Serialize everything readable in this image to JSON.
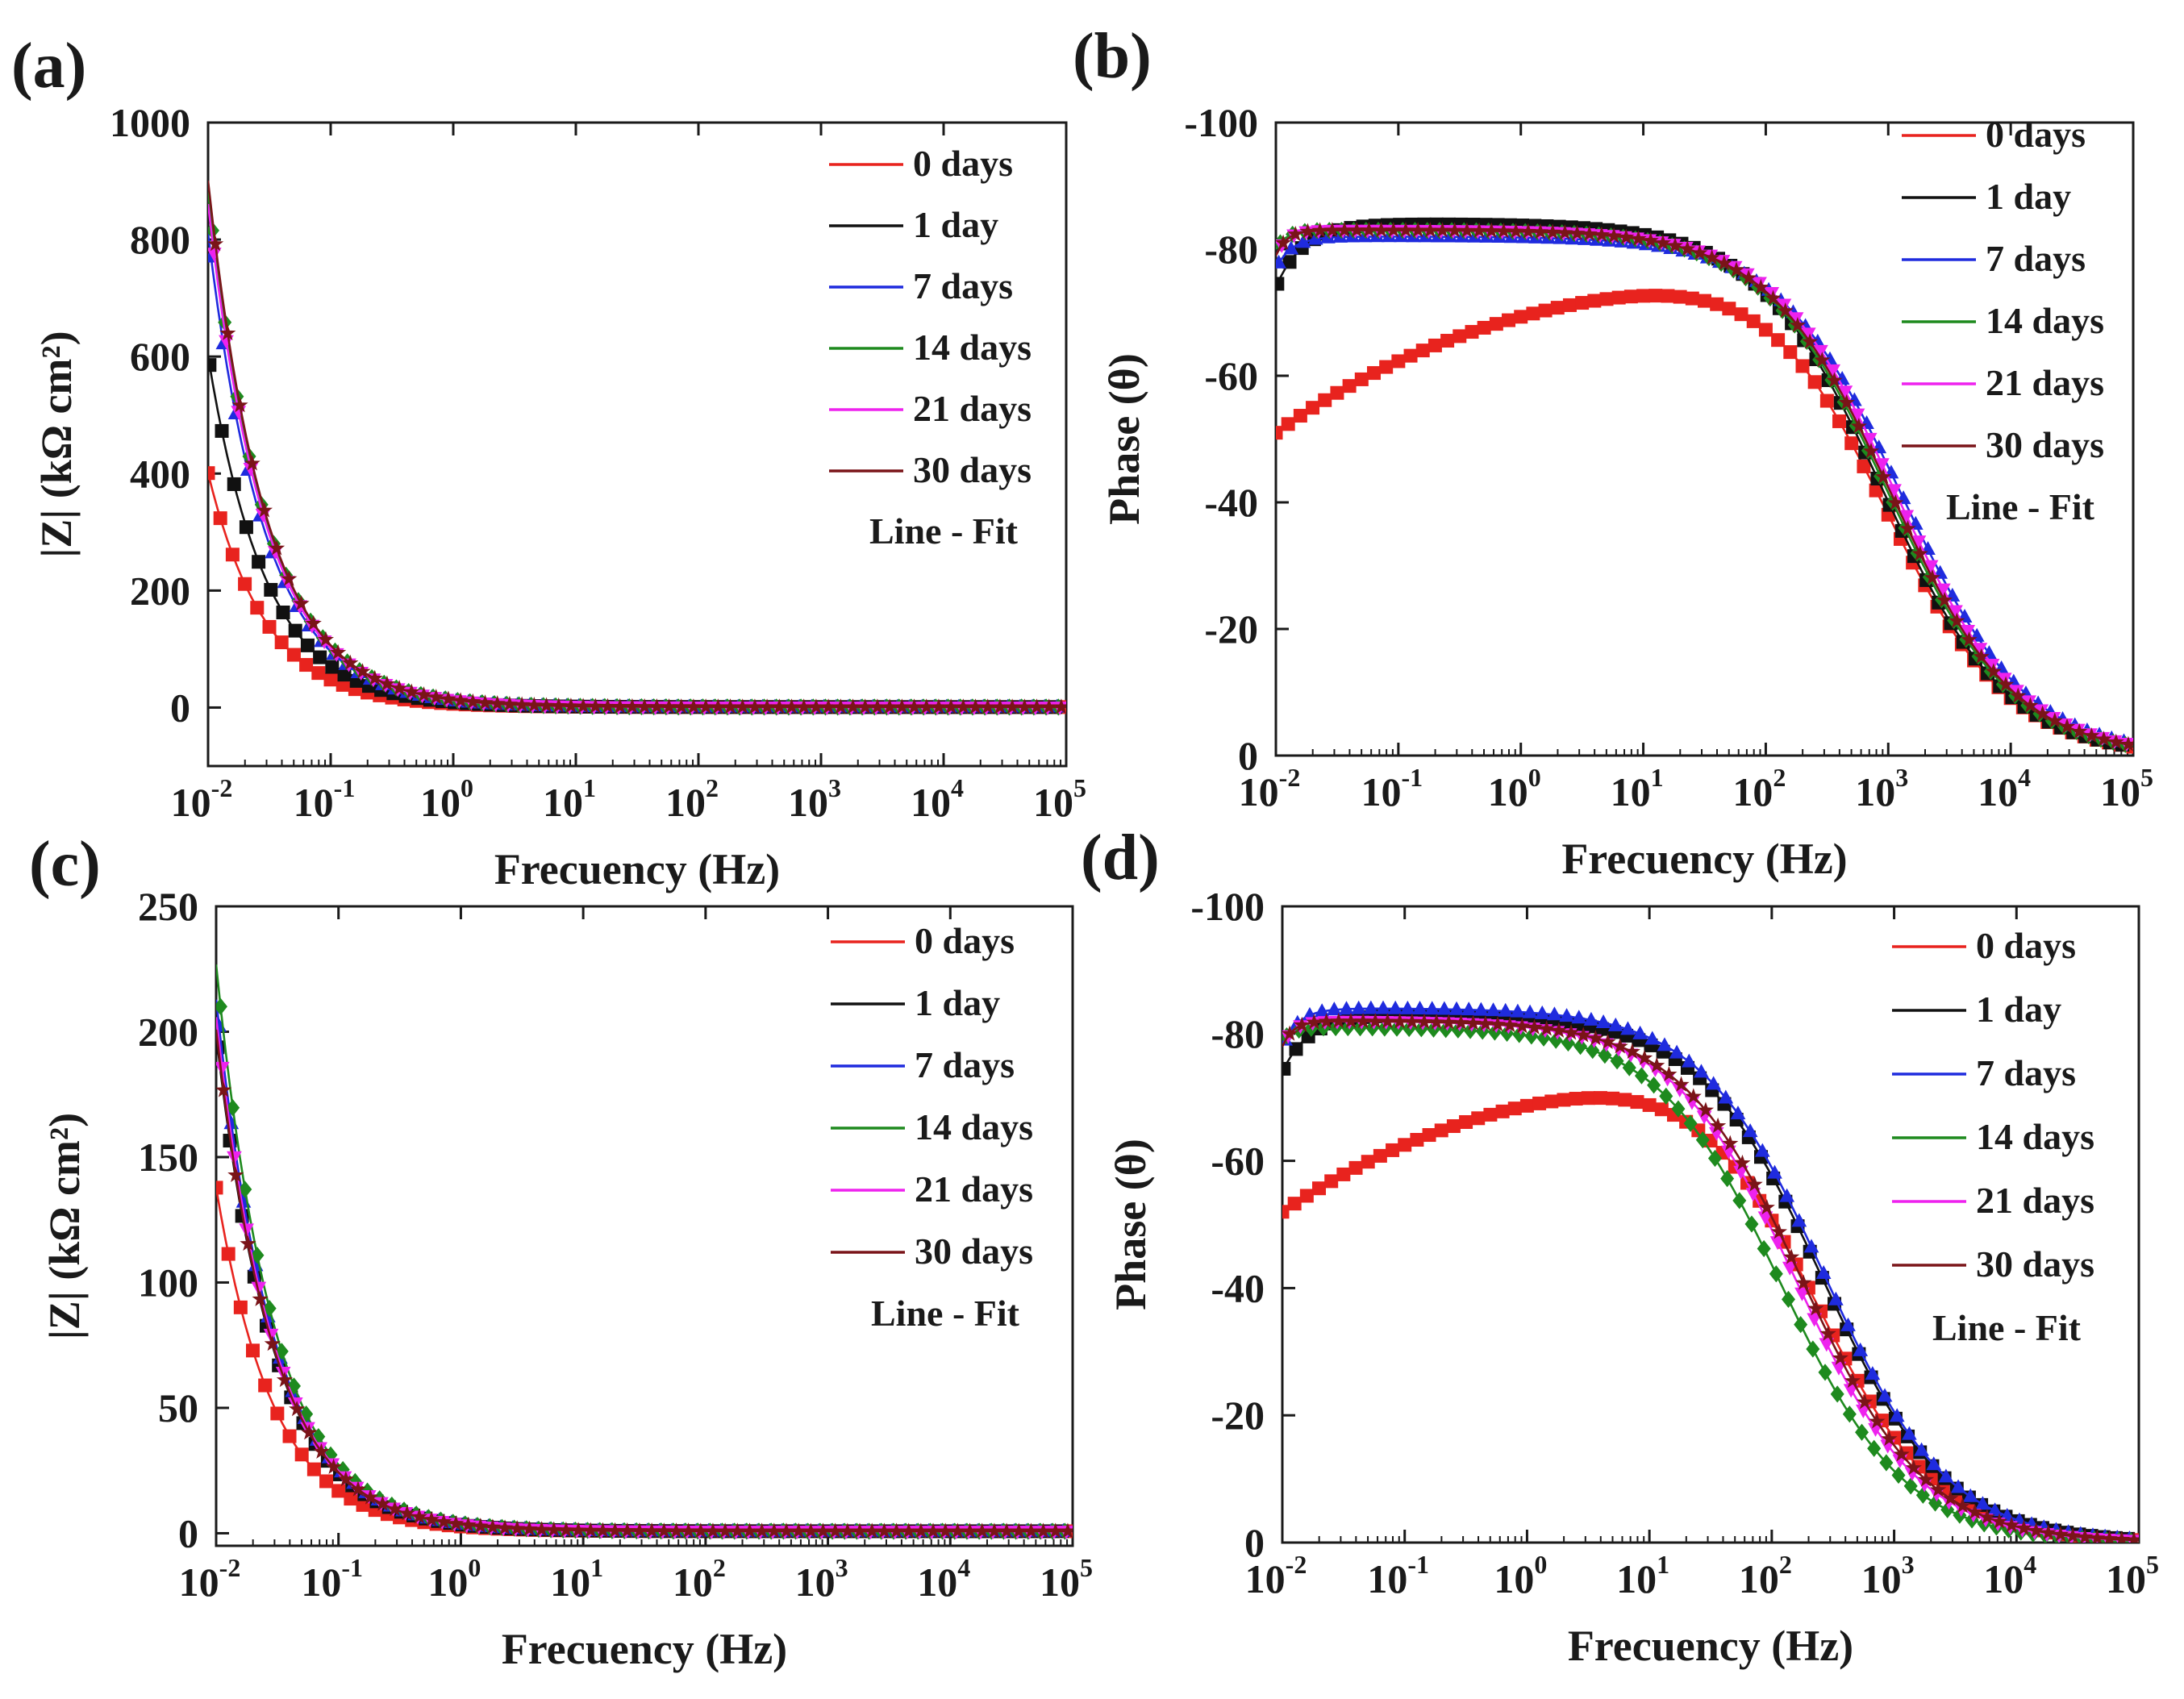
{
  "figure": {
    "panels": [
      {
        "id": "a",
        "label": "(a)"
      },
      {
        "id": "b",
        "label": "(b)"
      },
      {
        "id": "c",
        "label": "(c)"
      },
      {
        "id": "d",
        "label": "(d)"
      }
    ]
  },
  "chart_data": [
    {
      "panel": "(a)",
      "type": "scatter",
      "xscale": "log",
      "xlabel": "Frecuency (Hz)",
      "ylabel": "|Z| (kΩ cm²)",
      "xlim": [
        0.01,
        100000
      ],
      "ylim": [
        -100,
        1000
      ],
      "xticks": [
        0.01,
        0.1,
        1,
        10,
        100,
        1000,
        10000,
        100000
      ],
      "xtick_labels": [
        [
          "10",
          "-2"
        ],
        [
          "10",
          "-1"
        ],
        [
          "10",
          "0"
        ],
        [
          "10",
          "1"
        ],
        [
          "10",
          "2"
        ],
        [
          "10",
          "3"
        ],
        [
          "10",
          "4"
        ],
        [
          "10",
          "5"
        ]
      ],
      "yticks": [
        0,
        200,
        400,
        600,
        800,
        1000
      ],
      "legend": {
        "position": "right",
        "note": "Line - Fit"
      },
      "series": [
        {
          "name": "0 days",
          "color": "#e8231e",
          "marker": "square",
          "model": "magnitude",
          "params": {
            "y0": 400
          }
        },
        {
          "name": "1 day",
          "color": "#111111",
          "marker": "square",
          "model": "magnitude",
          "params": {
            "y0": 600
          }
        },
        {
          "name": "7 days",
          "color": "#1f2bde",
          "marker": "triangle",
          "model": "magnitude",
          "params": {
            "y0": 810
          }
        },
        {
          "name": "14 days",
          "color": "#1e8a1e",
          "marker": "diamond",
          "model": "magnitude",
          "params": {
            "y0": 880
          }
        },
        {
          "name": "21 days",
          "color": "#ee22ee",
          "marker": "triangle-down",
          "model": "magnitude",
          "params": {
            "y0": 860
          }
        },
        {
          "name": "30 days",
          "color": "#7a1418",
          "marker": "star",
          "model": "magnitude",
          "params": {
            "y0": 900
          }
        }
      ]
    },
    {
      "panel": "(b)",
      "type": "scatter",
      "xscale": "log",
      "xlabel": "Frecuency (Hz)",
      "ylabel": "Phase (θ)",
      "xlim": [
        0.01,
        100000
      ],
      "ylim": [
        0,
        -100
      ],
      "xticks": [
        0.01,
        0.1,
        1,
        10,
        100,
        1000,
        10000,
        100000
      ],
      "xtick_labels": [
        [
          "10",
          "-2"
        ],
        [
          "10",
          "-1"
        ],
        [
          "10",
          "0"
        ],
        [
          "10",
          "1"
        ],
        [
          "10",
          "2"
        ],
        [
          "10",
          "3"
        ],
        [
          "10",
          "4"
        ],
        [
          "10",
          "5"
        ]
      ],
      "yticks": [
        0,
        -20,
        -40,
        -60,
        -80,
        -100
      ],
      "legend": {
        "position": "right",
        "note": "Line - Fit"
      },
      "series": [
        {
          "name": "0 days",
          "color": "#e8231e",
          "marker": "square",
          "model": "phase",
          "params": {
            "start": -51,
            "plateau": -82,
            "fc": 950,
            "rise": 0.5
          }
        },
        {
          "name": "1 day",
          "color": "#111111",
          "marker": "square",
          "model": "phase",
          "params": {
            "start": -74,
            "plateau": -84,
            "fc": 900,
            "rise": 0.05
          }
        },
        {
          "name": "7 days",
          "color": "#1f2bde",
          "marker": "triangle",
          "model": "phase",
          "params": {
            "start": -77,
            "plateau": -82,
            "fc": 1300,
            "rise": 0.03
          }
        },
        {
          "name": "14 days",
          "color": "#1e8a1e",
          "marker": "diamond",
          "model": "phase",
          "params": {
            "start": -80,
            "plateau": -83,
            "fc": 1000,
            "rise": 0.02
          }
        },
        {
          "name": "21 days",
          "color": "#ee22ee",
          "marker": "triangle-down",
          "model": "phase",
          "params": {
            "start": -79,
            "plateau": -83,
            "fc": 1150,
            "rise": 0.02
          }
        },
        {
          "name": "30 days",
          "color": "#7a1418",
          "marker": "star",
          "model": "phase",
          "params": {
            "start": -79,
            "plateau": -83,
            "fc": 1050,
            "rise": 0.02
          }
        }
      ]
    },
    {
      "panel": "(c)",
      "type": "scatter",
      "xscale": "log",
      "xlabel": "Frecuency (Hz)",
      "ylabel": "|Z| (kΩ cm²)",
      "xlim": [
        0.01,
        100000
      ],
      "ylim": [
        -5,
        250
      ],
      "xticks": [
        0.01,
        0.1,
        1,
        10,
        100,
        1000,
        10000,
        100000
      ],
      "xtick_labels": [
        [
          "10",
          "-2"
        ],
        [
          "10",
          "-1"
        ],
        [
          "10",
          "0"
        ],
        [
          "10",
          "1"
        ],
        [
          "10",
          "2"
        ],
        [
          "10",
          "3"
        ],
        [
          "10",
          "4"
        ],
        [
          "10",
          "5"
        ]
      ],
      "yticks": [
        0,
        50,
        100,
        150,
        200,
        250
      ],
      "legend": {
        "position": "right",
        "note": "Line - Fit"
      },
      "series": [
        {
          "name": "0 days",
          "color": "#e8231e",
          "marker": "square",
          "model": "magnitude",
          "params": {
            "y0": 137
          }
        },
        {
          "name": "1 day",
          "color": "#111111",
          "marker": "square",
          "model": "magnitude",
          "params": {
            "y0": 198
          }
        },
        {
          "name": "7 days",
          "color": "#1f2bde",
          "marker": "triangle",
          "model": "magnitude",
          "params": {
            "y0": 212
          }
        },
        {
          "name": "14 days",
          "color": "#1e8a1e",
          "marker": "diamond",
          "model": "magnitude",
          "params": {
            "y0": 226
          }
        },
        {
          "name": "21 days",
          "color": "#ee22ee",
          "marker": "triangle-down",
          "model": "magnitude",
          "params": {
            "y0": 205
          }
        },
        {
          "name": "30 days",
          "color": "#7a1418",
          "marker": "star",
          "model": "magnitude",
          "params": {
            "y0": 200
          }
        }
      ]
    },
    {
      "panel": "(d)",
      "type": "scatter",
      "xscale": "log",
      "xlabel": "Frecuency (Hz)",
      "ylabel": "Phase (θ)",
      "xlim": [
        0.01,
        100000
      ],
      "ylim": [
        0,
        -100
      ],
      "xticks": [
        0.01,
        0.1,
        1,
        10,
        100,
        1000,
        10000,
        100000
      ],
      "xtick_labels": [
        [
          "10",
          "-2"
        ],
        [
          "10",
          "-1"
        ],
        [
          "10",
          "0"
        ],
        [
          "10",
          "1"
        ],
        [
          "10",
          "2"
        ],
        [
          "10",
          "3"
        ],
        [
          "10",
          "4"
        ],
        [
          "10",
          "5"
        ]
      ],
      "yticks": [
        0,
        -20,
        -40,
        -60,
        -80,
        -100
      ],
      "legend": {
        "position": "right",
        "note": "Line - Fit"
      },
      "series": [
        {
          "name": "0 days",
          "color": "#e8231e",
          "marker": "square",
          "model": "phase",
          "params": {
            "start": -52,
            "plateau": -81,
            "fc": 220,
            "rise": 0.5
          }
        },
        {
          "name": "1 day",
          "color": "#111111",
          "marker": "square",
          "model": "phase",
          "params": {
            "start": -74,
            "plateau": -83,
            "fc": 260,
            "rise": 0.05
          }
        },
        {
          "name": "7 days",
          "color": "#1f2bde",
          "marker": "triangle",
          "model": "phase",
          "params": {
            "start": -78,
            "plateau": -84,
            "fc": 270,
            "rise": 0.03
          }
        },
        {
          "name": "14 days",
          "color": "#1e8a1e",
          "marker": "diamond",
          "model": "phase",
          "params": {
            "start": -79,
            "plateau": -81,
            "fc": 120,
            "rise": 0.02
          }
        },
        {
          "name": "21 days",
          "color": "#ee22ee",
          "marker": "triangle-down",
          "model": "phase",
          "params": {
            "start": -78,
            "plateau": -82,
            "fc": 160,
            "rise": 0.02
          }
        },
        {
          "name": "30 days",
          "color": "#7a1418",
          "marker": "star",
          "model": "phase",
          "params": {
            "start": -78,
            "plateau": -82,
            "fc": 180,
            "rise": 0.02
          }
        }
      ]
    }
  ]
}
